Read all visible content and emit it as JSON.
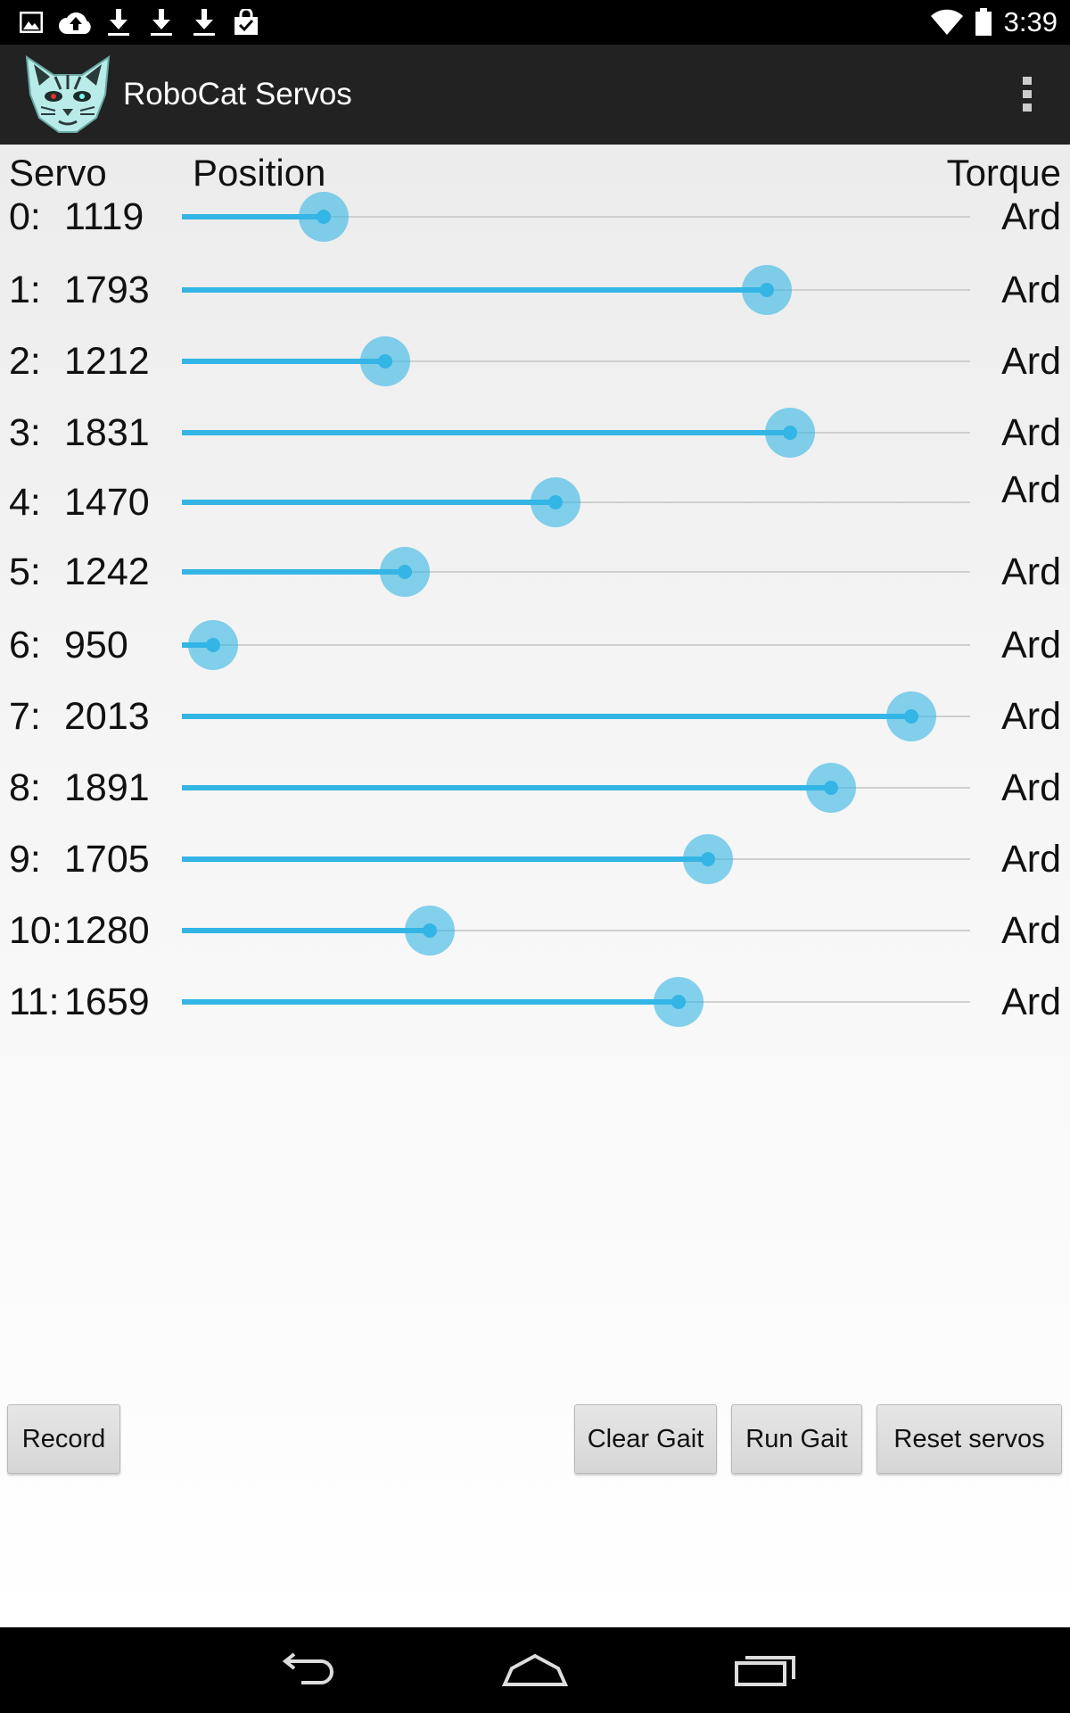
{
  "status_bar": {
    "time": "3:39",
    "notification_icons": [
      "image-icon",
      "cloud-upload-icon",
      "download-icon",
      "download-icon",
      "download-icon",
      "shopping-bag-icon"
    ],
    "system_icons": [
      "wifi-icon",
      "battery-icon"
    ]
  },
  "action_bar": {
    "title": "RoboCat Servos",
    "logo_icon": "robocat-logo-icon",
    "menu_icon": "overflow-menu-icon"
  },
  "headers": {
    "servo": "Servo",
    "position": "Position",
    "torque": "Torque"
  },
  "slider_color": "#33b5e5",
  "servos": [
    {
      "index": "0:",
      "value": "1119",
      "level": 0.18,
      "torque": "Ard"
    },
    {
      "index": "1:",
      "value": "1793",
      "level": 0.742,
      "torque": "Ard"
    },
    {
      "index": "2:",
      "value": "1212",
      "level": 0.258,
      "torque": "Ard"
    },
    {
      "index": "3:",
      "value": "1831",
      "level": 0.772,
      "torque": "Ard"
    },
    {
      "index": "4:",
      "value": "1470",
      "level": 0.474,
      "torque": "Ard"
    },
    {
      "index": "5:",
      "value": "1242",
      "level": 0.283,
      "torque": "Ard"
    },
    {
      "index": "6:",
      "value": "950",
      "level": 0.04,
      "torque": "Ard"
    },
    {
      "index": "7:",
      "value": "2013",
      "level": 0.925,
      "torque": "Ard"
    },
    {
      "index": "8:",
      "value": "1891",
      "level": 0.823,
      "torque": "Ard"
    },
    {
      "index": "9:",
      "value": "1705",
      "level": 0.667,
      "torque": "Ard"
    },
    {
      "index": "10:",
      "value": "1280",
      "level": 0.315,
      "torque": "Ard"
    },
    {
      "index": "11:",
      "value": "1659",
      "level": 0.63,
      "torque": "Ard"
    }
  ],
  "buttons": {
    "record": "Record",
    "clear_gait": "Clear Gait",
    "run_gait": "Run Gait",
    "reset_servos": "Reset servos"
  },
  "nav_bar": {
    "back_icon": "back-icon",
    "home_icon": "home-icon",
    "recents_icon": "recents-icon"
  }
}
